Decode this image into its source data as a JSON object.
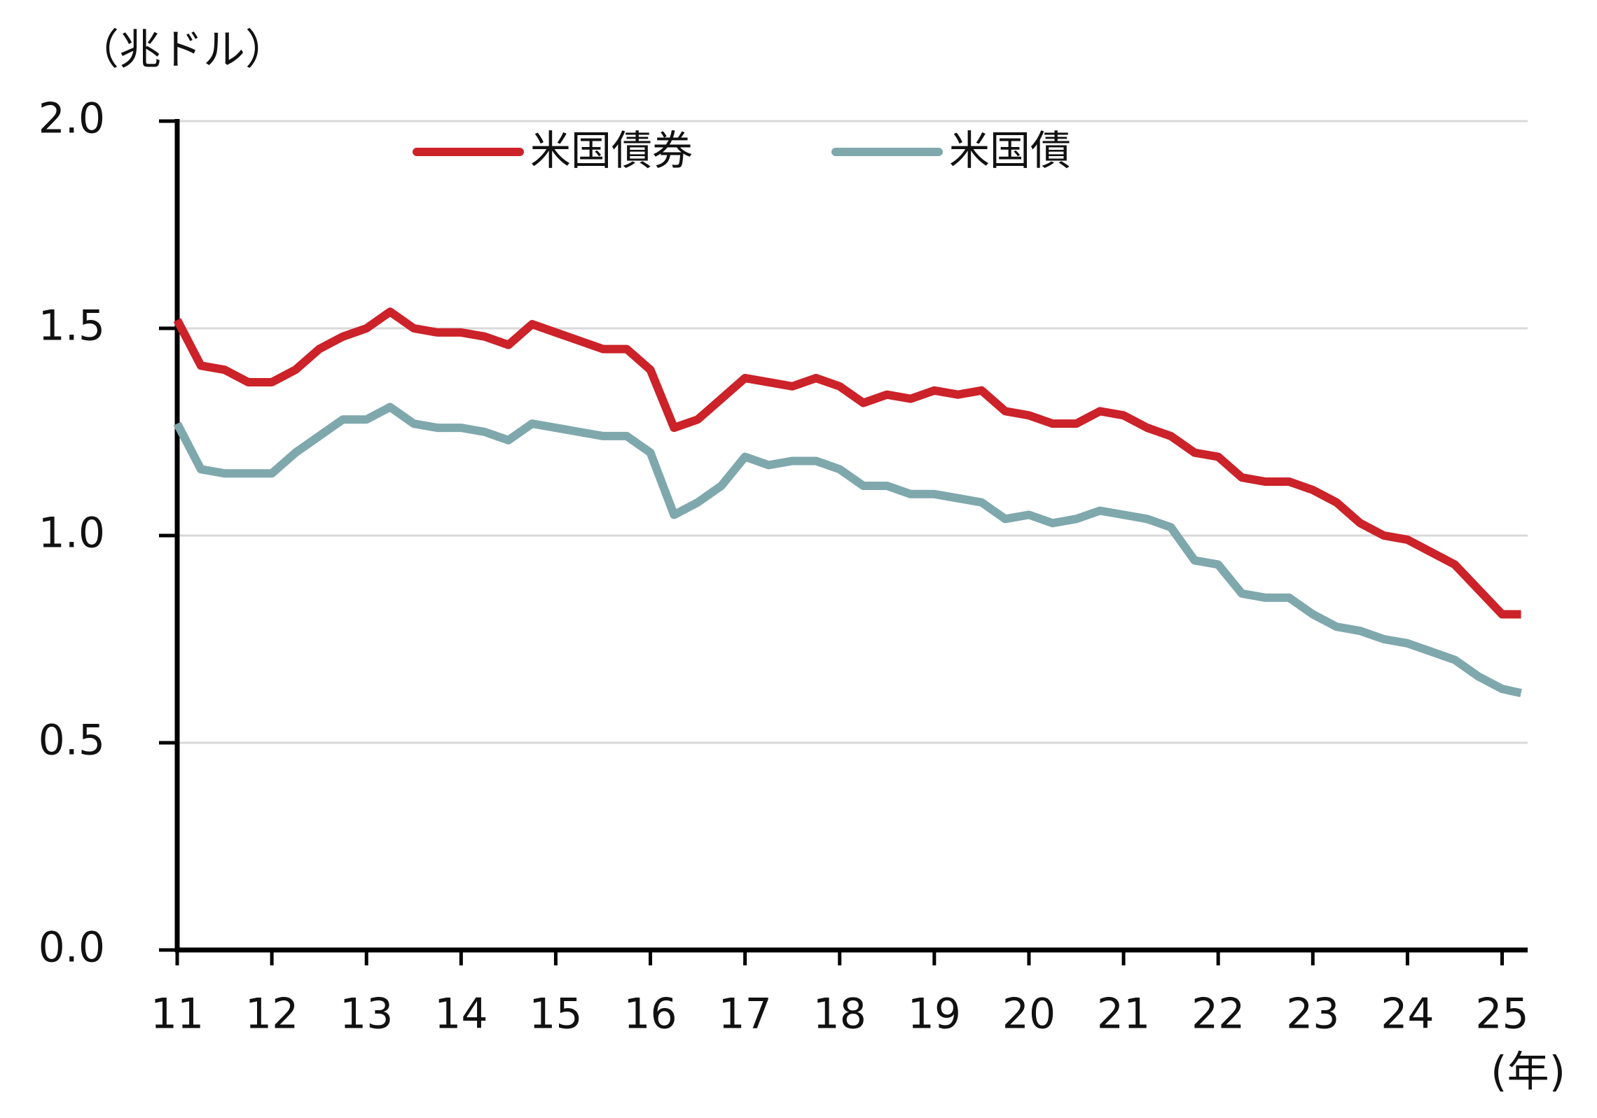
{
  "chart_data": {
    "type": "line",
    "y_unit_label": "（兆ドル）",
    "x_unit_label": "(年)",
    "x": [
      11,
      11.25,
      11.5,
      11.75,
      12,
      12.25,
      12.5,
      12.75,
      13,
      13.25,
      13.5,
      13.75,
      14,
      14.25,
      14.5,
      14.75,
      15,
      15.25,
      15.5,
      15.75,
      16,
      16.25,
      16.5,
      16.75,
      17,
      17.25,
      17.5,
      17.75,
      18,
      18.25,
      18.5,
      18.75,
      19,
      19.25,
      19.5,
      19.75,
      20,
      20.25,
      20.5,
      20.75,
      21,
      21.25,
      21.5,
      21.75,
      22,
      22.25,
      22.5,
      22.75,
      23,
      23.25,
      23.5,
      23.75,
      24,
      24.25,
      24.5,
      24.75,
      25,
      25.2
    ],
    "series": [
      {
        "name": "米国債券",
        "color": "#cc2229",
        "values": [
          1.52,
          1.41,
          1.4,
          1.37,
          1.37,
          1.4,
          1.45,
          1.48,
          1.5,
          1.54,
          1.5,
          1.49,
          1.49,
          1.48,
          1.46,
          1.51,
          1.49,
          1.47,
          1.45,
          1.45,
          1.4,
          1.26,
          1.28,
          1.33,
          1.38,
          1.37,
          1.36,
          1.38,
          1.36,
          1.32,
          1.34,
          1.33,
          1.35,
          1.34,
          1.35,
          1.3,
          1.29,
          1.27,
          1.27,
          1.3,
          1.29,
          1.26,
          1.24,
          1.2,
          1.19,
          1.14,
          1.13,
          1.13,
          1.11,
          1.08,
          1.03,
          1.0,
          0.99,
          0.96,
          0.93,
          0.87,
          0.81,
          0.81
        ]
      },
      {
        "name": "米国債",
        "color": "#7fa8ad",
        "values": [
          1.27,
          1.16,
          1.15,
          1.15,
          1.15,
          1.2,
          1.24,
          1.28,
          1.28,
          1.31,
          1.27,
          1.26,
          1.26,
          1.25,
          1.23,
          1.27,
          1.26,
          1.25,
          1.24,
          1.24,
          1.2,
          1.05,
          1.08,
          1.12,
          1.19,
          1.17,
          1.18,
          1.18,
          1.16,
          1.12,
          1.12,
          1.1,
          1.1,
          1.09,
          1.08,
          1.04,
          1.05,
          1.03,
          1.04,
          1.06,
          1.05,
          1.04,
          1.02,
          0.94,
          0.93,
          0.86,
          0.85,
          0.85,
          0.81,
          0.78,
          0.77,
          0.75,
          0.74,
          0.72,
          0.7,
          0.66,
          0.63,
          0.62
        ]
      }
    ],
    "xlim": [
      11,
      25.27
    ],
    "xticks": [
      11,
      12,
      13,
      14,
      15,
      16,
      17,
      18,
      19,
      20,
      21,
      22,
      23,
      24,
      25
    ],
    "ylim": [
      0,
      2
    ],
    "yticks": [
      {
        "value": 0,
        "label": "0.0"
      },
      0.5,
      {
        "value": 1,
        "label": "1.0"
      },
      1.5,
      {
        "value": 2,
        "label": "2.0"
      }
    ],
    "grid": true
  }
}
